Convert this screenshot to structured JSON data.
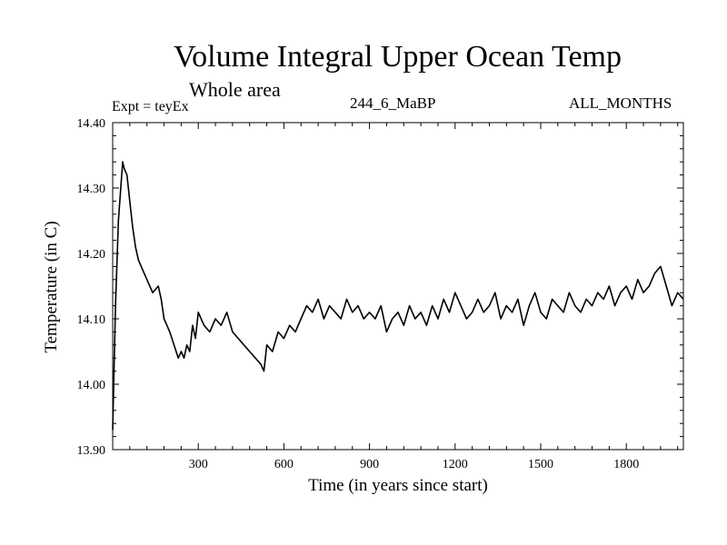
{
  "header": {
    "title": "Volume Integral Upper Ocean Temp",
    "subtitle": "Whole area",
    "experiment": "Expt = teyEx",
    "run_id": "244_6_MaBP",
    "months": "ALL_MONTHS"
  },
  "chart_data": {
    "type": "line",
    "title": "Volume Integral Upper Ocean Temp",
    "subtitle": "Whole area",
    "xlabel": "Time (in years since start)",
    "ylabel": "Temperature (in C)",
    "xlim": [
      0,
      2000
    ],
    "ylim": [
      13.9,
      14.4
    ],
    "xticks": [
      300,
      600,
      900,
      1200,
      1500,
      1800
    ],
    "xtick_labels": [
      "300",
      "600",
      "900",
      "1200",
      "1500",
      "1800"
    ],
    "yticks": [
      13.9,
      14.0,
      14.1,
      14.2,
      14.3,
      14.4
    ],
    "ytick_labels": [
      "13.90",
      "14.00",
      "14.10",
      "14.20",
      "14.30",
      "14.40"
    ],
    "grid": false,
    "series": [
      {
        "name": "teyEx",
        "x": [
          0,
          5,
          10,
          20,
          30,
          35,
          40,
          50,
          60,
          70,
          80,
          90,
          100,
          120,
          140,
          160,
          170,
          180,
          190,
          200,
          215,
          230,
          240,
          250,
          260,
          270,
          280,
          290,
          300,
          320,
          340,
          360,
          380,
          400,
          420,
          440,
          460,
          480,
          500,
          520,
          530,
          540,
          560,
          580,
          600,
          620,
          640,
          660,
          680,
          700,
          720,
          740,
          760,
          780,
          800,
          820,
          840,
          860,
          880,
          900,
          920,
          940,
          960,
          980,
          1000,
          1020,
          1040,
          1060,
          1080,
          1100,
          1120,
          1140,
          1160,
          1180,
          1200,
          1220,
          1240,
          1260,
          1280,
          1300,
          1320,
          1340,
          1360,
          1380,
          1400,
          1420,
          1440,
          1460,
          1480,
          1500,
          1520,
          1540,
          1560,
          1580,
          1600,
          1620,
          1640,
          1660,
          1680,
          1700,
          1720,
          1740,
          1760,
          1780,
          1800,
          1820,
          1840,
          1860,
          1880,
          1900,
          1920,
          1940,
          1960,
          1980,
          2000
        ],
        "values": [
          13.93,
          14.03,
          14.12,
          14.25,
          14.31,
          14.34,
          14.33,
          14.32,
          14.28,
          14.24,
          14.21,
          14.19,
          14.18,
          14.16,
          14.14,
          14.15,
          14.13,
          14.1,
          14.09,
          14.08,
          14.06,
          14.04,
          14.05,
          14.04,
          14.06,
          14.05,
          14.09,
          14.07,
          14.11,
          14.09,
          14.08,
          14.1,
          14.09,
          14.11,
          14.08,
          14.07,
          14.06,
          14.05,
          14.04,
          14.03,
          14.02,
          14.06,
          14.05,
          14.08,
          14.07,
          14.09,
          14.08,
          14.1,
          14.12,
          14.11,
          14.13,
          14.1,
          14.12,
          14.11,
          14.1,
          14.13,
          14.11,
          14.12,
          14.1,
          14.11,
          14.1,
          14.12,
          14.08,
          14.1,
          14.11,
          14.09,
          14.12,
          14.1,
          14.11,
          14.09,
          14.12,
          14.1,
          14.13,
          14.11,
          14.14,
          14.12,
          14.1,
          14.11,
          14.13,
          14.11,
          14.12,
          14.14,
          14.1,
          14.12,
          14.11,
          14.13,
          14.09,
          14.12,
          14.14,
          14.11,
          14.1,
          14.13,
          14.12,
          14.11,
          14.14,
          14.12,
          14.11,
          14.13,
          14.12,
          14.14,
          14.13,
          14.15,
          14.12,
          14.14,
          14.15,
          14.13,
          14.16,
          14.14,
          14.15,
          14.17,
          14.18,
          14.15,
          14.12,
          14.14,
          14.13
        ]
      }
    ]
  }
}
